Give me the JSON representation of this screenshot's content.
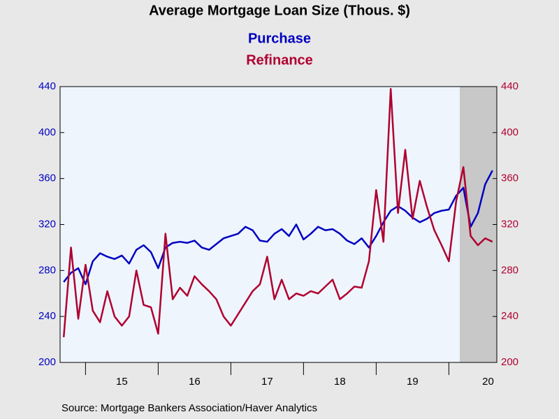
{
  "chart_data": {
    "type": "line",
    "title": "Average Mortgage Loan Size (Thous. $)",
    "source": "Source:  Mortgage Bankers Association/Haver Analytics",
    "x": [
      14.7,
      14.8,
      14.9,
      15.0,
      15.1,
      15.2,
      15.3,
      15.4,
      15.5,
      15.6,
      15.7,
      15.8,
      15.9,
      16.0,
      16.1,
      16.2,
      16.3,
      16.4,
      16.5,
      16.6,
      16.7,
      16.8,
      16.9,
      17.0,
      17.1,
      17.2,
      17.3,
      17.4,
      17.5,
      17.6,
      17.7,
      17.8,
      17.9,
      18.0,
      18.1,
      18.2,
      18.3,
      18.4,
      18.5,
      18.6,
      18.7,
      18.8,
      18.9,
      19.0,
      19.1,
      19.2,
      19.3,
      19.4,
      19.5,
      19.6,
      19.7,
      19.8,
      19.9,
      20.0,
      20.1,
      20.2,
      20.3,
      20.4,
      20.5,
      20.6
    ],
    "series": [
      {
        "name": "Purchase",
        "color": "#0000c0",
        "values": [
          270,
          278,
          282,
          268,
          288,
          295,
          292,
          290,
          293,
          286,
          298,
          302,
          296,
          282,
          300,
          304,
          305,
          304,
          306,
          300,
          298,
          303,
          308,
          310,
          312,
          318,
          315,
          306,
          305,
          312,
          316,
          310,
          320,
          307,
          312,
          318,
          315,
          316,
          312,
          306,
          303,
          308,
          300,
          310,
          322,
          332,
          336,
          332,
          326,
          322,
          325,
          330,
          332,
          333,
          345,
          352,
          318,
          330,
          355,
          367
        ]
      },
      {
        "name": "Refinance",
        "color": "#b00030",
        "axis": "y2",
        "values": [
          222,
          300,
          238,
          285,
          245,
          235,
          262,
          240,
          232,
          240,
          280,
          250,
          248,
          225,
          312,
          255,
          265,
          258,
          275,
          268,
          262,
          255,
          240,
          232,
          242,
          252,
          262,
          268,
          292,
          255,
          272,
          255,
          260,
          258,
          262,
          260,
          266,
          272,
          255,
          260,
          266,
          265,
          288,
          350,
          305,
          438,
          330,
          385,
          325,
          358,
          335,
          315,
          302,
          288,
          340,
          370,
          310,
          302,
          308,
          305
        ]
      }
    ],
    "xlim": [
      14.65,
      20.66
    ],
    "xticks": [
      {
        "value": 15.5,
        "label": "15"
      },
      {
        "value": 16.5,
        "label": "16"
      },
      {
        "value": 17.5,
        "label": "17"
      },
      {
        "value": 18.5,
        "label": "18"
      },
      {
        "value": 19.5,
        "label": "19"
      },
      {
        "value": 20.54,
        "label": "20"
      }
    ],
    "xminorticks": [
      15,
      16,
      17,
      18,
      19,
      20
    ],
    "shaded_range": [
      20.15,
      20.66
    ],
    "ylim": [
      200,
      440
    ],
    "yticks": [
      200,
      240,
      280,
      320,
      360,
      400,
      440
    ],
    "y2lim": [
      200,
      440
    ],
    "y2ticks": [
      200,
      240,
      280,
      320,
      360,
      400,
      440
    ]
  }
}
